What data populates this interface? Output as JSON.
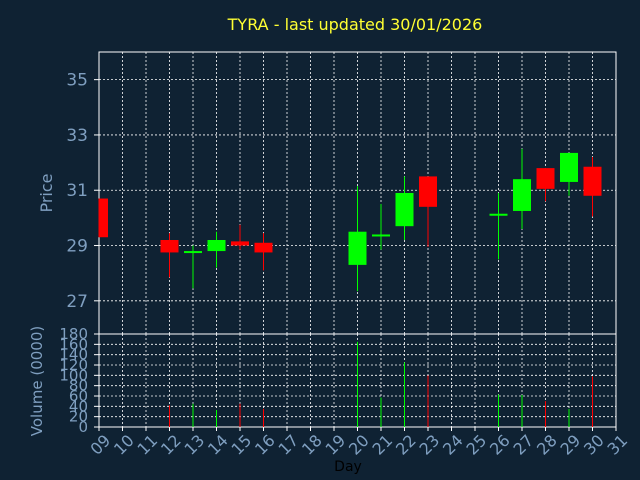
{
  "chart_data": {
    "type": "candlestick",
    "title": "TYRA - last updated 30/01/2026",
    "colors": {
      "background": "#0f2233",
      "plot": "#0f2233",
      "grid": "#ffffff",
      "axis_text": "#7f9fc0",
      "title": "#ffff33",
      "up": "#00ff00",
      "down": "#ff0000"
    },
    "price_panel": {
      "ylabel": "Price",
      "ylim": [
        25.8,
        36.0
      ],
      "yticks": [
        27,
        29,
        31,
        33,
        35
      ]
    },
    "volume_panel": {
      "ylabel": "Volume (0000)",
      "ylim": [
        0,
        180
      ],
      "yticks": [
        0,
        20,
        40,
        60,
        80,
        100,
        120,
        140,
        160,
        180
      ]
    },
    "xlabel": "Day",
    "x_ticks": [
      "09",
      "10",
      "11",
      "12",
      "13",
      "14",
      "15",
      "16",
      "17",
      "18",
      "19",
      "20",
      "21",
      "22",
      "23",
      "24",
      "25",
      "26",
      "27",
      "28",
      "29",
      "30",
      "31"
    ],
    "candles": [
      {
        "day": "09",
        "open": 30.7,
        "close": 29.3,
        "high": 30.7,
        "low": 29.3,
        "volume": 0
      },
      {
        "day": "12",
        "open": 29.2,
        "close": 28.75,
        "high": 29.45,
        "low": 27.85,
        "volume": 42
      },
      {
        "day": "13",
        "open": 28.75,
        "close": 28.8,
        "high": 29.0,
        "low": 27.45,
        "volume": 45
      },
      {
        "day": "14",
        "open": 28.8,
        "close": 29.2,
        "high": 29.5,
        "low": 28.2,
        "volume": 33
      },
      {
        "day": "15",
        "open": 29.15,
        "close": 29.0,
        "high": 29.75,
        "low": 28.85,
        "volume": 45
      },
      {
        "day": "16",
        "open": 29.1,
        "close": 28.75,
        "high": 29.45,
        "low": 28.1,
        "volume": 35
      },
      {
        "day": "20",
        "open": 28.3,
        "close": 29.5,
        "high": 31.15,
        "low": 27.35,
        "volume": 165
      },
      {
        "day": "21",
        "open": 29.35,
        "close": 29.4,
        "high": 30.5,
        "low": 28.85,
        "volume": 57
      },
      {
        "day": "22",
        "open": 29.7,
        "close": 30.9,
        "high": 31.5,
        "low": 29.2,
        "volume": 125
      },
      {
        "day": "23",
        "open": 31.5,
        "close": 30.4,
        "high": 31.5,
        "low": 28.95,
        "volume": 100
      },
      {
        "day": "26",
        "open": 30.1,
        "close": 30.15,
        "high": 30.9,
        "low": 28.5,
        "volume": 63
      },
      {
        "day": "27",
        "open": 30.25,
        "close": 31.4,
        "high": 32.5,
        "low": 29.6,
        "volume": 62
      },
      {
        "day": "28",
        "open": 31.8,
        "close": 31.05,
        "high": 31.8,
        "low": 30.6,
        "volume": 50
      },
      {
        "day": "29",
        "open": 31.3,
        "close": 32.35,
        "high": 32.35,
        "low": 30.8,
        "volume": 35
      },
      {
        "day": "30",
        "open": 31.85,
        "close": 30.8,
        "high": 32.2,
        "low": 30.05,
        "volume": 98
      }
    ]
  }
}
